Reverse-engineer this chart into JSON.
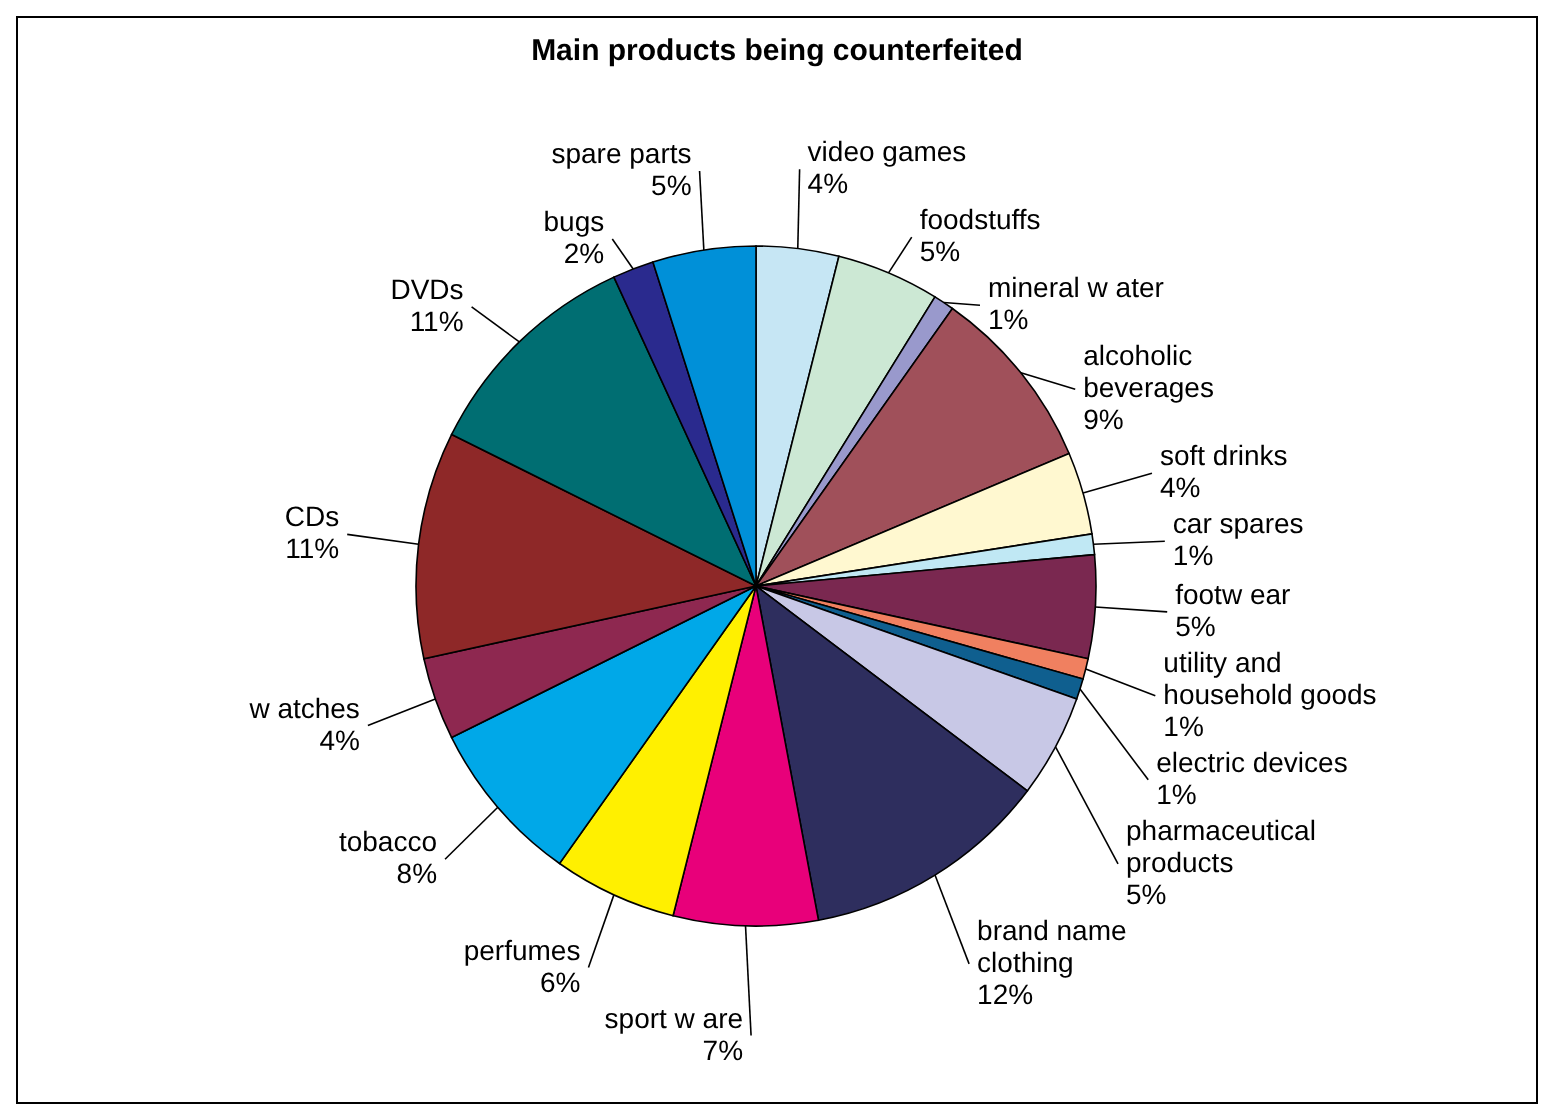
{
  "chart_data": {
    "type": "pie",
    "title": "Main products being counterfeited",
    "categories": [
      "video games",
      "foodstuffs",
      "mineral w ater",
      "alcoholic beverages",
      "soft drinks",
      "car spares",
      "footw ear",
      "utility and household goods",
      "electric devices",
      "pharmaceutical products",
      "brand name clothing",
      "sport w are",
      "perfumes",
      "tobacco",
      "w atches",
      "CDs",
      "DVDs",
      "bugs",
      "spare parts"
    ],
    "values": [
      4,
      5,
      1,
      9,
      4,
      1,
      5,
      1,
      1,
      5,
      12,
      7,
      6,
      8,
      4,
      11,
      11,
      2,
      5
    ],
    "value_labels": [
      "4%",
      "5%",
      "1%",
      "9%",
      "4%",
      "1%",
      "5%",
      "1%",
      "1%",
      "5%",
      "12%",
      "7%",
      "6%",
      "8%",
      "4%",
      "11%",
      "11%",
      "2%",
      "5%"
    ],
    "colors": [
      "#c6e6f4",
      "#cce8d4",
      "#9999cc",
      "#a0505a",
      "#fff8d0",
      "#c0e8f4",
      "#7a2850",
      "#f08060",
      "#0f5f8f",
      "#c8c8e6",
      "#2e2e5e",
      "#e8007a",
      "#fff000",
      "#00a8e8",
      "#8e2850",
      "#8e2828",
      "#006e72",
      "#2a2a8e",
      "#0090d8"
    ]
  }
}
